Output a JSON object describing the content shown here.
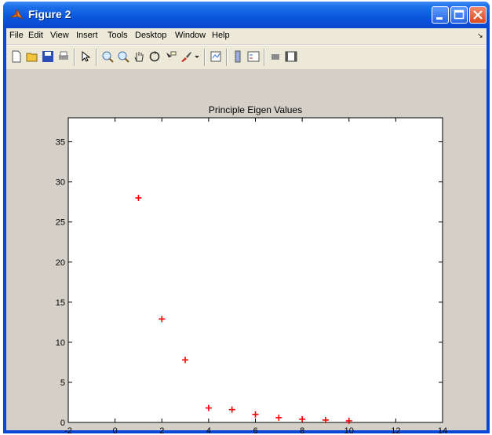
{
  "window": {
    "title": "Figure 2"
  },
  "menu": [
    "File",
    "Edit",
    "View",
    "Insert",
    "Tools",
    "Desktop",
    "Window",
    "Help"
  ],
  "toolbar_icons": [
    "new-figure-icon",
    "open-file-icon",
    "save-icon",
    "print-icon",
    "select-arrow-icon",
    "zoom-in-icon",
    "zoom-out-icon",
    "pan-icon",
    "rotate-3d-icon",
    "data-cursor-icon",
    "brush-icon",
    "brush-dropdown-icon",
    "link-plot-icon",
    "colorbar-icon",
    "legend-icon",
    "hide-plot-tools-icon",
    "show-plot-tools-icon"
  ],
  "chart_data": {
    "type": "scatter",
    "title": "Principle Eigen Values",
    "xlabel": "",
    "ylabel": "",
    "xlim": [
      -2,
      14
    ],
    "ylim": [
      0,
      38
    ],
    "xticks": [
      "-2",
      "0",
      "2",
      "4",
      "6",
      "8",
      "10",
      "12",
      "14"
    ],
    "yticks": [
      "0",
      "5",
      "10",
      "15",
      "20",
      "25",
      "30",
      "35"
    ],
    "marker": "+",
    "marker_color": "#ff0000",
    "x": [
      1,
      2,
      3,
      4,
      5,
      6,
      7,
      8,
      9,
      10
    ],
    "y": [
      28.0,
      12.9,
      7.8,
      1.8,
      1.6,
      1.0,
      0.6,
      0.4,
      0.3,
      0.2
    ]
  }
}
